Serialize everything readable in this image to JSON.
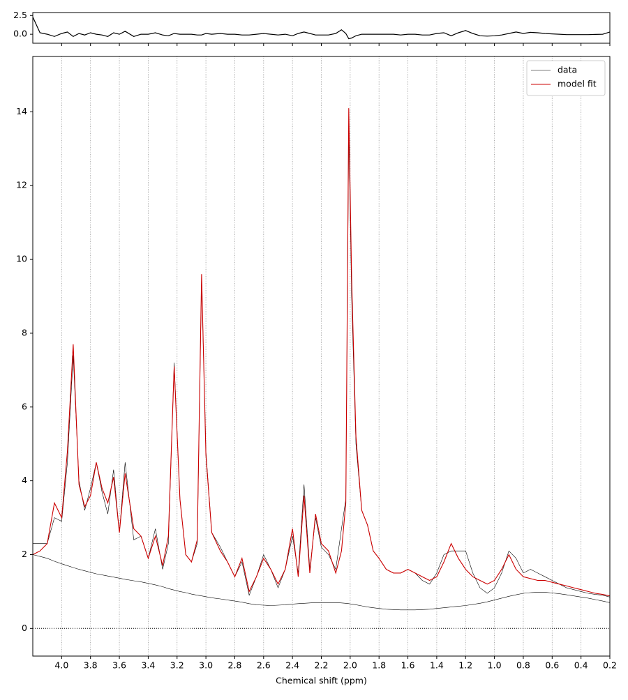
{
  "chart_data": [
    {
      "type": "line",
      "x": [
        4.2,
        4.15,
        4.1,
        4.05,
        4.0,
        3.96,
        3.92,
        3.88,
        3.84,
        3.8,
        3.76,
        3.72,
        3.68,
        3.64,
        3.6,
        3.56,
        3.5,
        3.45,
        3.4,
        3.35,
        3.3,
        3.26,
        3.22,
        3.18,
        3.14,
        3.1,
        3.06,
        3.03,
        3.0,
        2.96,
        2.9,
        2.85,
        2.8,
        2.75,
        2.7,
        2.65,
        2.6,
        2.55,
        2.5,
        2.45,
        2.4,
        2.36,
        2.32,
        2.28,
        2.24,
        2.2,
        2.15,
        2.1,
        2.06,
        2.03,
        2.01,
        1.99,
        1.96,
        1.92,
        1.88,
        1.84,
        1.8,
        1.75,
        1.7,
        1.65,
        1.6,
        1.55,
        1.5,
        1.45,
        1.4,
        1.35,
        1.3,
        1.25,
        1.2,
        1.15,
        1.1,
        1.05,
        1.0,
        0.95,
        0.9,
        0.85,
        0.8,
        0.75,
        0.7,
        0.65,
        0.6,
        0.55,
        0.5,
        0.45,
        0.4,
        0.35,
        0.3,
        0.25,
        0.2
      ],
      "series": [
        {
          "color": "#000000",
          "values": [
            2.3,
            0.2,
            0.0,
            -0.3,
            0.1,
            0.3,
            -0.3,
            0.1,
            -0.1,
            0.2,
            0.0,
            -0.1,
            -0.3,
            0.2,
            0.0,
            0.4,
            -0.3,
            0.0,
            0.0,
            0.2,
            -0.1,
            -0.2,
            0.1,
            0.0,
            0.0,
            0.0,
            -0.1,
            -0.1,
            0.1,
            0.0,
            0.1,
            0.0,
            0.0,
            -0.1,
            -0.1,
            0.0,
            0.1,
            0.0,
            -0.1,
            0.0,
            -0.2,
            0.1,
            0.3,
            0.1,
            -0.1,
            -0.1,
            -0.1,
            0.1,
            0.6,
            0.1,
            -0.6,
            -0.5,
            -0.2,
            0.0,
            0.0,
            0.0,
            0.0,
            0.0,
            0.0,
            -0.1,
            0.0,
            0.0,
            -0.1,
            -0.1,
            0.1,
            0.2,
            -0.2,
            0.2,
            0.5,
            0.1,
            -0.2,
            -0.25,
            -0.2,
            -0.1,
            0.1,
            0.3,
            0.1,
            0.25,
            0.2,
            0.1,
            0.05,
            0.0,
            -0.05,
            -0.05,
            -0.05,
            -0.05,
            -0.03,
            0.0,
            0.3
          ]
        }
      ],
      "xlim": [
        4.2,
        0.2
      ],
      "xticks": [
        {
          "value": 4.0,
          "label": "4.0"
        },
        3.8,
        3.6,
        3.4,
        3.2,
        {
          "value": 3.0,
          "label": "3.0"
        },
        2.8,
        2.6,
        2.4,
        2.2,
        {
          "value": 2.0,
          "label": "2.0"
        },
        1.8,
        1.6,
        1.4,
        1.2,
        {
          "value": 1.0,
          "label": "1.0"
        },
        0.8,
        0.6,
        0.4,
        0.2
      ],
      "ylim": [
        -1.2,
        2.9
      ],
      "yticks": [
        {
          "value": 0,
          "label": "0.0"
        },
        2.5
      ]
    },
    {
      "type": "line",
      "xlabel": "Chemical shift (ppm)",
      "x": [
        4.2,
        4.15,
        4.1,
        4.05,
        4.0,
        3.96,
        3.92,
        3.88,
        3.84,
        3.8,
        3.76,
        3.72,
        3.68,
        3.64,
        3.6,
        3.56,
        3.5,
        3.45,
        3.4,
        3.35,
        3.3,
        3.26,
        3.22,
        3.18,
        3.14,
        3.1,
        3.06,
        3.03,
        3.0,
        2.96,
        2.9,
        2.85,
        2.8,
        2.75,
        2.7,
        2.65,
        2.6,
        2.55,
        2.5,
        2.45,
        2.4,
        2.36,
        2.32,
        2.28,
        2.24,
        2.2,
        2.15,
        2.1,
        2.06,
        2.03,
        2.01,
        1.99,
        1.96,
        1.92,
        1.88,
        1.84,
        1.8,
        1.75,
        1.7,
        1.65,
        1.6,
        1.55,
        1.5,
        1.45,
        1.4,
        1.35,
        1.3,
        1.25,
        1.2,
        1.15,
        1.1,
        1.05,
        1.0,
        0.95,
        0.9,
        0.85,
        0.8,
        0.75,
        0.7,
        0.65,
        0.6,
        0.55,
        0.5,
        0.45,
        0.4,
        0.35,
        0.3,
        0.25,
        0.2
      ],
      "series": [
        {
          "name": "data",
          "color": "#000000",
          "values": [
            2.3,
            2.3,
            2.3,
            3.0,
            2.9,
            4.5,
            7.4,
            4.0,
            3.2,
            3.8,
            4.5,
            3.7,
            3.1,
            4.3,
            2.6,
            4.5,
            2.4,
            2.5,
            1.9,
            2.7,
            1.6,
            2.3,
            7.2,
            3.5,
            2.0,
            1.8,
            2.3,
            9.5,
            4.8,
            2.6,
            2.2,
            1.8,
            1.4,
            1.8,
            0.9,
            1.4,
            2.0,
            1.6,
            1.1,
            1.6,
            2.5,
            1.5,
            3.9,
            1.6,
            3.0,
            2.2,
            2.0,
            1.6,
            2.7,
            3.5,
            13.5,
            9.0,
            5.0,
            3.2,
            2.8,
            2.1,
            1.9,
            1.6,
            1.5,
            1.5,
            1.6,
            1.5,
            1.3,
            1.2,
            1.5,
            2.0,
            2.1,
            2.1,
            2.1,
            1.5,
            1.1,
            0.95,
            1.1,
            1.5,
            2.1,
            1.9,
            1.5,
            1.6,
            1.5,
            1.4,
            1.3,
            1.2,
            1.1,
            1.05,
            1.0,
            0.95,
            0.92,
            0.9,
            0.85
          ]
        },
        {
          "name": "model fit",
          "color": "#cc0000",
          "values": [
            2.0,
            2.1,
            2.3,
            3.4,
            3.0,
            4.8,
            7.7,
            3.9,
            3.3,
            3.6,
            4.5,
            3.8,
            3.4,
            4.1,
            2.6,
            4.2,
            2.7,
            2.5,
            1.9,
            2.5,
            1.7,
            2.5,
            7.1,
            3.5,
            2.0,
            1.8,
            2.4,
            9.6,
            4.7,
            2.6,
            2.1,
            1.8,
            1.4,
            1.9,
            1.0,
            1.4,
            1.9,
            1.6,
            1.2,
            1.6,
            2.7,
            1.4,
            3.6,
            1.5,
            3.1,
            2.3,
            2.1,
            1.5,
            2.1,
            3.4,
            14.1,
            9.5,
            5.2,
            3.2,
            2.8,
            2.1,
            1.9,
            1.6,
            1.5,
            1.5,
            1.6,
            1.5,
            1.4,
            1.3,
            1.4,
            1.8,
            2.3,
            1.9,
            1.6,
            1.4,
            1.3,
            1.2,
            1.3,
            1.6,
            2.0,
            1.6,
            1.4,
            1.35,
            1.3,
            1.3,
            1.25,
            1.2,
            1.15,
            1.1,
            1.05,
            1.0,
            0.95,
            0.92,
            0.88
          ]
        },
        {
          "color": "#000000",
          "values": [
            2.0,
            1.95,
            1.9,
            1.82,
            1.75,
            1.7,
            1.65,
            1.6,
            1.56,
            1.52,
            1.48,
            1.45,
            1.42,
            1.39,
            1.36,
            1.33,
            1.29,
            1.26,
            1.22,
            1.18,
            1.13,
            1.08,
            1.04,
            1.0,
            0.97,
            0.93,
            0.9,
            0.88,
            0.86,
            0.83,
            0.8,
            0.77,
            0.74,
            0.71,
            0.67,
            0.64,
            0.63,
            0.62,
            0.63,
            0.64,
            0.66,
            0.67,
            0.68,
            0.69,
            0.7,
            0.7,
            0.7,
            0.7,
            0.69,
            0.68,
            0.67,
            0.66,
            0.64,
            0.61,
            0.58,
            0.56,
            0.54,
            0.52,
            0.51,
            0.5,
            0.5,
            0.5,
            0.51,
            0.52,
            0.54,
            0.56,
            0.58,
            0.6,
            0.62,
            0.65,
            0.68,
            0.72,
            0.77,
            0.82,
            0.87,
            0.91,
            0.95,
            0.97,
            0.98,
            0.98,
            0.96,
            0.94,
            0.91,
            0.88,
            0.85,
            0.82,
            0.78,
            0.74,
            0.7
          ]
        }
      ],
      "xlim": [
        4.2,
        0.2
      ],
      "xticks": [
        {
          "value": 4.0,
          "label": "4.0"
        },
        3.8,
        3.6,
        3.4,
        3.2,
        {
          "value": 3.0,
          "label": "3.0"
        },
        2.8,
        2.6,
        2.4,
        2.2,
        {
          "value": 2.0,
          "label": "2.0"
        },
        1.8,
        1.6,
        1.4,
        1.2,
        {
          "value": 1.0,
          "label": "1.0"
        },
        0.8,
        0.6,
        0.4,
        0.2
      ],
      "ylim": [
        -0.75,
        15.5
      ],
      "yticks": [
        0,
        2,
        4,
        6,
        8,
        10,
        12,
        14
      ],
      "grid": true,
      "zero_line": true,
      "legend": "upper right"
    }
  ]
}
